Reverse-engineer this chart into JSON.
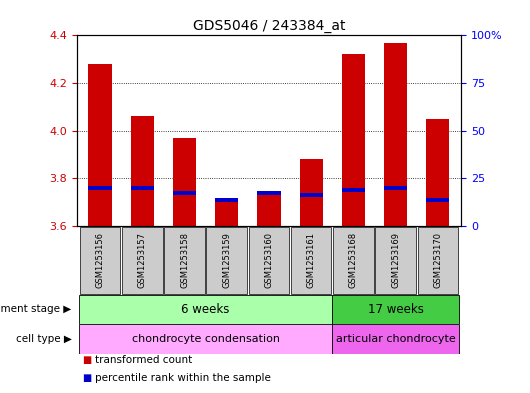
{
  "title": "GDS5046 / 243384_at",
  "samples": [
    "GSM1253156",
    "GSM1253157",
    "GSM1253158",
    "GSM1253159",
    "GSM1253160",
    "GSM1253161",
    "GSM1253168",
    "GSM1253169",
    "GSM1253170"
  ],
  "transformed_count": [
    4.28,
    4.06,
    3.97,
    3.7,
    3.74,
    3.88,
    4.32,
    4.37,
    4.05
  ],
  "percentile_y": [
    3.76,
    3.76,
    3.74,
    3.71,
    3.74,
    3.73,
    3.75,
    3.76,
    3.71
  ],
  "ylim_left": [
    3.6,
    4.4
  ],
  "ylim_right": [
    0,
    100
  ],
  "yticks_left": [
    3.6,
    3.8,
    4.0,
    4.2,
    4.4
  ],
  "yticks_right": [
    0,
    25,
    50,
    75,
    100
  ],
  "yticklabels_right": [
    "0",
    "25",
    "50",
    "75",
    "100%"
  ],
  "bar_color": "#cc0000",
  "percentile_color": "#0000cc",
  "dev_stage_groups": [
    {
      "label": "6 weeks",
      "start": 0,
      "end": 6,
      "color": "#aaffaa"
    },
    {
      "label": "17 weeks",
      "start": 6,
      "end": 9,
      "color": "#44cc44"
    }
  ],
  "cell_type_groups": [
    {
      "label": "chondrocyte condensation",
      "start": 0,
      "end": 6,
      "color": "#ffaaff"
    },
    {
      "label": "articular chondrocyte",
      "start": 6,
      "end": 9,
      "color": "#ee66ee"
    }
  ],
  "dev_stage_label": "development stage",
  "cell_type_label": "cell type",
  "legend_items": [
    {
      "color": "#cc0000",
      "label": "transformed count"
    },
    {
      "color": "#0000cc",
      "label": "percentile rank within the sample"
    }
  ],
  "bg_color": "#ffffff",
  "tick_area_bg": "#cccccc"
}
